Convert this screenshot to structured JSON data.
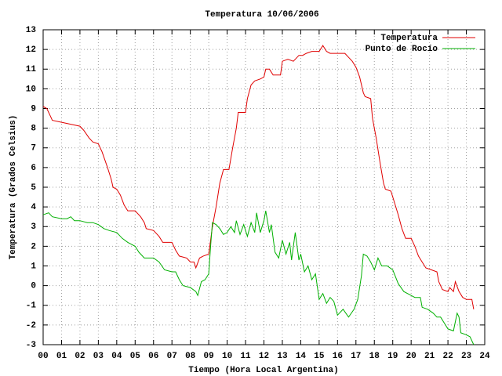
{
  "chart_data": {
    "type": "line",
    "title": "Temperatura 10/06/2006",
    "xlabel": "Tiempo (Hora Local Argentina)",
    "ylabel": "Temperatura (Grados Celsius)",
    "xlim": [
      0,
      24
    ],
    "ylim": [
      -3,
      13
    ],
    "xticks": [
      {
        "value": 0,
        "label": "00"
      },
      {
        "value": 1,
        "label": "01"
      },
      {
        "value": 2,
        "label": "02"
      },
      {
        "value": 3,
        "label": "03"
      },
      {
        "value": 4,
        "label": "04"
      },
      {
        "value": 5,
        "label": "05"
      },
      {
        "value": 6,
        "label": "06"
      },
      {
        "value": 7,
        "label": "07"
      },
      {
        "value": 8,
        "label": "08"
      },
      {
        "value": 9,
        "label": "09"
      },
      10,
      11,
      12,
      13,
      14,
      15,
      16,
      17,
      18,
      19,
      20,
      21,
      22,
      23,
      24
    ],
    "yticks": [
      -3,
      -2,
      -1,
      0,
      1,
      2,
      3,
      4,
      5,
      6,
      7,
      8,
      9,
      10,
      11,
      12,
      13
    ],
    "grid": true,
    "legend": "top-right",
    "series": [
      {
        "name": "Temperatura",
        "color": "#e00000",
        "x": [
          0,
          0.2,
          0.4,
          0.5,
          1.0,
          1.5,
          2.0,
          2.2,
          2.5,
          2.7,
          3.0,
          3.2,
          3.5,
          3.7,
          3.8,
          4.0,
          4.2,
          4.4,
          4.6,
          5.0,
          5.3,
          5.5,
          5.6,
          6.0,
          6.3,
          6.5,
          7.0,
          7.2,
          7.4,
          7.8,
          8.0,
          8.2,
          8.3,
          8.5,
          8.7,
          9.0,
          9.1,
          9.2,
          9.4,
          9.6,
          9.8,
          10.1,
          10.3,
          10.5,
          10.6,
          11.0,
          11.1,
          11.3,
          11.5,
          11.8,
          12.0,
          12.1,
          12.3,
          12.5,
          12.9,
          13.0,
          13.3,
          13.6,
          13.9,
          14.1,
          14.3,
          14.6,
          15.0,
          15.2,
          15.4,
          15.6,
          16.0,
          16.4,
          16.6,
          16.8,
          17.0,
          17.2,
          17.4,
          17.5,
          17.8,
          17.9,
          18.1,
          18.3,
          18.5,
          18.6,
          18.9,
          19.1,
          19.3,
          19.5,
          19.7,
          20.0,
          20.2,
          20.4,
          20.6,
          20.8,
          21.1,
          21.4,
          21.5,
          21.7,
          22.0,
          22.1,
          22.3,
          22.4,
          22.6,
          22.8,
          23.0,
          23.3,
          23.4
        ],
        "values": [
          9.1,
          9.0,
          8.6,
          8.4,
          8.3,
          8.2,
          8.1,
          7.9,
          7.5,
          7.3,
          7.2,
          6.8,
          6.0,
          5.4,
          5.0,
          4.9,
          4.6,
          4.1,
          3.8,
          3.8,
          3.5,
          3.2,
          2.9,
          2.8,
          2.5,
          2.2,
          2.2,
          1.8,
          1.5,
          1.4,
          1.2,
          1.2,
          0.9,
          1.4,
          1.5,
          1.6,
          2.3,
          3.0,
          4.0,
          5.2,
          5.9,
          5.9,
          7.0,
          8.0,
          8.8,
          8.8,
          9.5,
          10.2,
          10.4,
          10.5,
          10.6,
          11.0,
          11.0,
          10.7,
          10.7,
          11.4,
          11.5,
          11.4,
          11.7,
          11.7,
          11.8,
          11.9,
          11.9,
          12.2,
          11.9,
          11.8,
          11.8,
          11.8,
          11.6,
          11.4,
          11.1,
          10.6,
          9.8,
          9.6,
          9.5,
          8.5,
          7.5,
          6.3,
          5.2,
          4.9,
          4.8,
          4.2,
          3.6,
          2.9,
          2.4,
          2.4,
          2.0,
          1.5,
          1.2,
          0.9,
          0.8,
          0.7,
          0.2,
          -0.2,
          -0.3,
          -0.1,
          -0.3,
          0.2,
          -0.3,
          -0.6,
          -0.7,
          -0.7,
          -1.2
        ]
      },
      {
        "name": "Punto de Rocío",
        "color": "#00b000",
        "x": [
          0,
          0.3,
          0.5,
          1.0,
          1.3,
          1.5,
          1.7,
          2.0,
          2.4,
          2.7,
          3.0,
          3.3,
          3.6,
          4.0,
          4.3,
          4.6,
          5.0,
          5.2,
          5.5,
          6.0,
          6.3,
          6.6,
          7.0,
          7.2,
          7.4,
          7.6,
          8.0,
          8.3,
          8.4,
          8.6,
          8.8,
          9.0,
          9.1,
          9.2,
          9.4,
          9.6,
          9.8,
          10.0,
          10.2,
          10.4,
          10.5,
          10.7,
          10.9,
          11.1,
          11.3,
          11.5,
          11.6,
          11.8,
          12.0,
          12.1,
          12.3,
          12.4,
          12.6,
          12.8,
          13.0,
          13.2,
          13.4,
          13.5,
          13.7,
          13.9,
          14.0,
          14.2,
          14.4,
          14.6,
          14.8,
          15.0,
          15.2,
          15.4,
          15.6,
          15.8,
          16.0,
          16.3,
          16.6,
          16.9,
          17.1,
          17.3,
          17.4,
          17.6,
          17.8,
          18.0,
          18.2,
          18.4,
          18.7,
          19.0,
          19.3,
          19.6,
          20.0,
          20.2,
          20.5,
          20.6,
          20.9,
          21.2,
          21.4,
          21.6,
          21.8,
          22.0,
          22.3,
          22.5,
          22.6,
          22.7,
          23.0,
          23.2,
          23.4
        ],
        "values": [
          3.6,
          3.7,
          3.5,
          3.4,
          3.4,
          3.5,
          3.3,
          3.3,
          3.2,
          3.2,
          3.1,
          2.9,
          2.8,
          2.7,
          2.4,
          2.2,
          2.0,
          1.7,
          1.4,
          1.4,
          1.2,
          0.8,
          0.7,
          0.7,
          0.3,
          0.0,
          -0.1,
          -0.3,
          -0.5,
          0.2,
          0.3,
          0.6,
          2.0,
          3.2,
          3.1,
          2.9,
          2.6,
          2.7,
          3.0,
          2.7,
          3.3,
          2.6,
          3.1,
          2.5,
          3.2,
          2.7,
          3.7,
          2.7,
          3.3,
          3.8,
          2.7,
          3.1,
          1.7,
          1.4,
          2.3,
          1.6,
          2.2,
          1.3,
          2.7,
          1.3,
          1.6,
          0.7,
          1.0,
          0.3,
          0.6,
          -0.7,
          -0.4,
          -0.9,
          -0.6,
          -0.8,
          -1.5,
          -1.2,
          -1.6,
          -1.2,
          -0.7,
          0.5,
          1.6,
          1.5,
          1.2,
          0.8,
          1.4,
          1.0,
          1.0,
          0.8,
          0.1,
          -0.3,
          -0.5,
          -0.6,
          -0.6,
          -1.1,
          -1.2,
          -1.4,
          -1.6,
          -1.6,
          -1.9,
          -2.2,
          -2.3,
          -1.4,
          -1.6,
          -2.4,
          -2.5,
          -2.6,
          -3.0
        ]
      }
    ]
  }
}
